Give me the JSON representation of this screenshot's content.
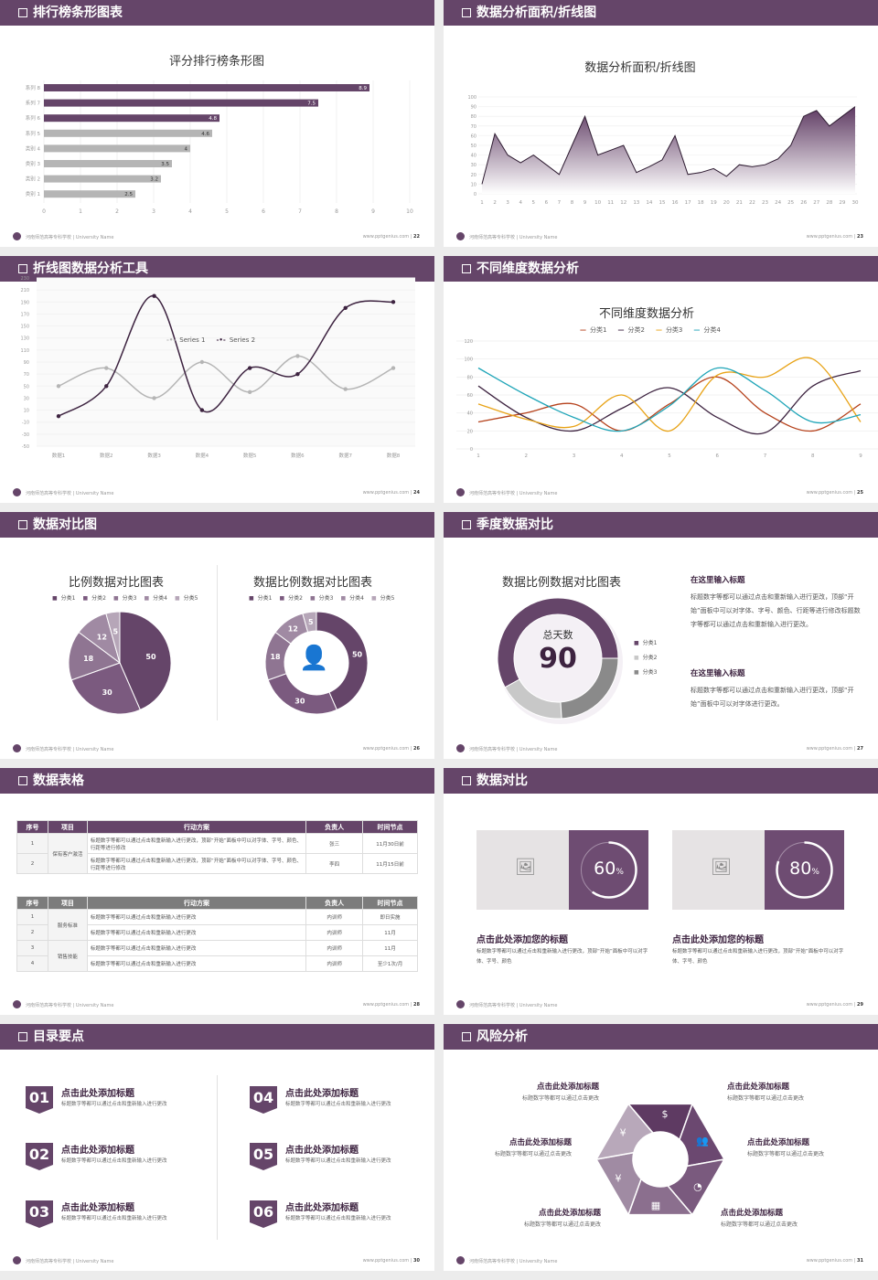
{
  "footer": {
    "org": "河南师范高等专科学校 | University Name",
    "url": "www.pptgenius.com |"
  },
  "colors": {
    "brand": "#654569",
    "gray": "#b5b5b5"
  },
  "slides": [
    {
      "header": "排行榜条形图表",
      "page": "22"
    },
    {
      "header": "数据分析面积/折线图",
      "page": "23"
    },
    {
      "header": "折线图数据分析工具",
      "page": "24"
    },
    {
      "header": "不同维度数据分析",
      "page": "25"
    },
    {
      "header": "数据对比图",
      "page": "26"
    },
    {
      "header": "季度数据对比",
      "page": "27"
    },
    {
      "header": "数据表格",
      "page": "28"
    },
    {
      "header": "数据对比",
      "page": "29"
    },
    {
      "header": "目录要点",
      "page": "30"
    },
    {
      "header": "风险分析",
      "page": "31"
    }
  ],
  "chart_data": [
    {
      "type": "bar",
      "orientation": "horizontal",
      "title": "评分排行榜条形图",
      "categories": [
        "系列 8",
        "系列 7",
        "系列 6",
        "系列 5",
        "类别 4",
        "类别 3",
        "类别 2",
        "类别 1"
      ],
      "values": [
        8.9,
        7.5,
        4.8,
        4.6,
        4,
        3.5,
        3.2,
        2.5
      ],
      "highlight_colors": [
        "#654569",
        "#654569",
        "#654569",
        "#b5b5b5",
        "#b5b5b5",
        "#b5b5b5",
        "#b5b5b5",
        "#b5b5b5"
      ],
      "xlim": [
        0,
        10
      ],
      "xticks": [
        "0",
        "1",
        "2",
        "3",
        "4",
        "5",
        "6",
        "7",
        "8",
        "9",
        "10"
      ],
      "grid": true
    },
    {
      "type": "area",
      "title": "数据分析面积/折线图",
      "x": [
        1,
        2,
        3,
        4,
        5,
        6,
        7,
        8,
        9,
        10,
        11,
        12,
        13,
        14,
        15,
        16,
        17,
        18,
        19,
        20,
        21,
        22,
        23,
        24,
        25,
        26,
        27,
        28,
        29,
        30
      ],
      "values": [
        10,
        62,
        40,
        32,
        40,
        30,
        20,
        50,
        80,
        40,
        45,
        50,
        22,
        28,
        35,
        60,
        20,
        22,
        26,
        18,
        30,
        28,
        30,
        36,
        50,
        80,
        86,
        70,
        80,
        90
      ],
      "ylim": [
        0,
        100
      ],
      "yticks": [
        "0",
        "10",
        "20",
        "30",
        "40",
        "50",
        "60",
        "70",
        "80",
        "90",
        "100"
      ]
    },
    {
      "type": "line",
      "smooth": true,
      "title": "折线图数据分析工具",
      "categories": [
        "数据1",
        "数据2",
        "数据3",
        "数据4",
        "数据5",
        "数据6",
        "数据7",
        "数据8"
      ],
      "series": [
        {
          "name": "Series 1",
          "color": "#b5b5b5",
          "values": [
            50,
            80,
            30,
            90,
            40,
            100,
            45,
            80
          ]
        },
        {
          "name": "Series 2",
          "color": "#3d2340",
          "values": [
            0,
            50,
            200,
            10,
            80,
            70,
            180,
            190
          ]
        }
      ],
      "ylim": [
        -50,
        230
      ],
      "yticks": [
        "-50",
        "-30",
        "-10",
        "10",
        "30",
        "50",
        "70",
        "90",
        "110",
        "130",
        "150",
        "170",
        "190",
        "210",
        "230"
      ],
      "legend": "top"
    },
    {
      "type": "line",
      "smooth": true,
      "title": "不同维度数据分析",
      "categories": [
        "1",
        "2",
        "3",
        "4",
        "5",
        "6",
        "7",
        "8",
        "9"
      ],
      "series": [
        {
          "name": "分类1",
          "color": "#b5411b",
          "values": [
            30,
            40,
            50,
            20,
            50,
            80,
            40,
            20,
            50
          ]
        },
        {
          "name": "分类2",
          "color": "#3d2340",
          "values": [
            70,
            35,
            20,
            45,
            68,
            35,
            18,
            70,
            87
          ]
        },
        {
          "name": "分类3",
          "color": "#e8a317",
          "values": [
            50,
            33,
            25,
            60,
            20,
            82,
            80,
            100,
            30
          ]
        },
        {
          "name": "分类4",
          "color": "#1fa5b8",
          "values": [
            90,
            60,
            35,
            20,
            48,
            90,
            65,
            30,
            38
          ]
        }
      ],
      "ylim": [
        0,
        120
      ],
      "yticks": [
        "0",
        "20",
        "40",
        "60",
        "80",
        "100",
        "120"
      ],
      "legend": "top"
    },
    {
      "type": "pie",
      "title": "比例数据对比图表",
      "categories": [
        "分类1",
        "分类2",
        "分类3",
        "分类4",
        "分类5"
      ],
      "values": [
        50,
        30,
        18,
        12,
        5
      ],
      "colors": [
        "#654569",
        "#7b5a7f",
        "#8f7592",
        "#a08aa3",
        "#b6a6b8"
      ],
      "legend": "top"
    },
    {
      "type": "pie",
      "donut": true,
      "title": "数据比例数据对比图表",
      "categories": [
        "分类1",
        "分类2",
        "分类3",
        "分类4",
        "分类5"
      ],
      "values": [
        50,
        30,
        18,
        12,
        5
      ],
      "colors": [
        "#654569",
        "#7b5a7f",
        "#8f7592",
        "#a08aa3",
        "#b6a6b8"
      ],
      "legend": "top",
      "center_icon": "person-chat-icon"
    },
    {
      "type": "pie",
      "donut": true,
      "title": "数据比例数据对比图表",
      "categories": [
        "分类1",
        "分类2",
        "分类3"
      ],
      "values": [
        58,
        18,
        24
      ],
      "colors": [
        "#654569",
        "#c8c8c8",
        "#8a8a8a"
      ],
      "center_label": "总天数",
      "center_value": "90",
      "legend": "right"
    }
  ],
  "s6": {
    "blocks": [
      {
        "title": "在这里输入标题",
        "body": "标题数字等都可以通过点击和重新输入进行更改，顶部“开始”面板中可以对字体、字号、颜色、行距等进行修改标题数字等都可以通过点击和重新输入进行更改。"
      },
      {
        "title": "在这里输入标题",
        "body": "标题数字等都可以通过点击和重新输入进行更改，顶部“开始”面板中可以对字体进行更改。"
      }
    ]
  },
  "s7": {
    "headers": [
      "序号",
      "项目",
      "行动方案",
      "负责人",
      "时间节点"
    ],
    "t1": {
      "group": "保有客户激活",
      "rows": [
        [
          "1",
          "标题数字等都可以通过点击和重新输入进行更改，顶部“开始”面板中可以对字体、字号、颜色、行距等进行修改",
          "张三",
          "11月30日前"
        ],
        [
          "2",
          "标题数字等都可以通过点击和重新输入进行更改，顶部“开始”面板中可以对字体、字号、颜色、行距等进行修改",
          "李四",
          "11月15日前"
        ]
      ]
    },
    "t2": {
      "groups": [
        "服务标准",
        "销售技能"
      ],
      "rows": [
        [
          "1",
          "标题数字等都可以通过点击和重新输入进行更改",
          "内训师",
          "即日实施"
        ],
        [
          "2",
          "标题数字等都可以通过点击和重新输入进行更改",
          "内训师",
          "11月"
        ],
        [
          "3",
          "标题数字等都可以通过点击和重新输入进行更改",
          "内训师",
          "11月"
        ],
        [
          "4",
          "标题数字等都可以通过点击和重新输入进行更改",
          "内训师",
          "至少1次/月"
        ]
      ]
    }
  },
  "s8": {
    "cards": [
      {
        "percent": 60,
        "label": "60",
        "unit": "%",
        "title": "点击此处添加您的标题",
        "body": "标题数字等都可以通过点击和重新输入进行更改，顶部“开始”面板中可以对字体、字号、颜色"
      },
      {
        "percent": 80,
        "label": "80",
        "unit": "%",
        "title": "点击此处添加您的标题",
        "body": "标题数字等都可以通过点击和重新输入进行更改，顶部“开始”面板中可以对字体、字号、颜色"
      }
    ]
  },
  "s9": {
    "items": [
      {
        "num": "01",
        "title": "点击此处添加标题",
        "body": "标题数字等都可以通过点击和重新输入进行更改"
      },
      {
        "num": "02",
        "title": "点击此处添加标题",
        "body": "标题数字等都可以通过点击和重新输入进行更改"
      },
      {
        "num": "03",
        "title": "点击此处添加标题",
        "body": "标题数字等都可以通过点击和重新输入进行更改"
      },
      {
        "num": "04",
        "title": "点击此处添加标题",
        "body": "标题数字等都可以通过点击和重新输入进行更改"
      },
      {
        "num": "05",
        "title": "点击此处添加标题",
        "body": "标题数字等都可以通过点击和重新输入进行更改"
      },
      {
        "num": "06",
        "title": "点击此处添加标题",
        "body": "标题数字等都可以通过点击和重新输入进行更改"
      }
    ]
  },
  "s10": {
    "items": [
      {
        "title": "点击此处添加标题",
        "body": "标题数字等都可以通过点击更改",
        "icon": "money-bag-icon",
        "glyph": "¥"
      },
      {
        "title": "点击此处添加标题",
        "body": "标题数字等都可以通过点击更改",
        "icon": "coins-icon",
        "glyph": "$"
      },
      {
        "title": "点击此处添加标题",
        "body": "标题数字等都可以通过点击更改",
        "icon": "users-icon",
        "glyph": "👥"
      },
      {
        "title": "点击此处添加标题",
        "body": "标题数字等都可以通过点击更改",
        "icon": "pie-chart-icon",
        "glyph": "◔"
      },
      {
        "title": "点击此处添加标题",
        "body": "标题数字等都可以通过点击更改",
        "icon": "building-icon",
        "glyph": "▦"
      },
      {
        "title": "点击此处添加标题",
        "body": "标题数字等都可以通过点击更改",
        "icon": "hand-money-icon",
        "glyph": "¥"
      }
    ]
  }
}
